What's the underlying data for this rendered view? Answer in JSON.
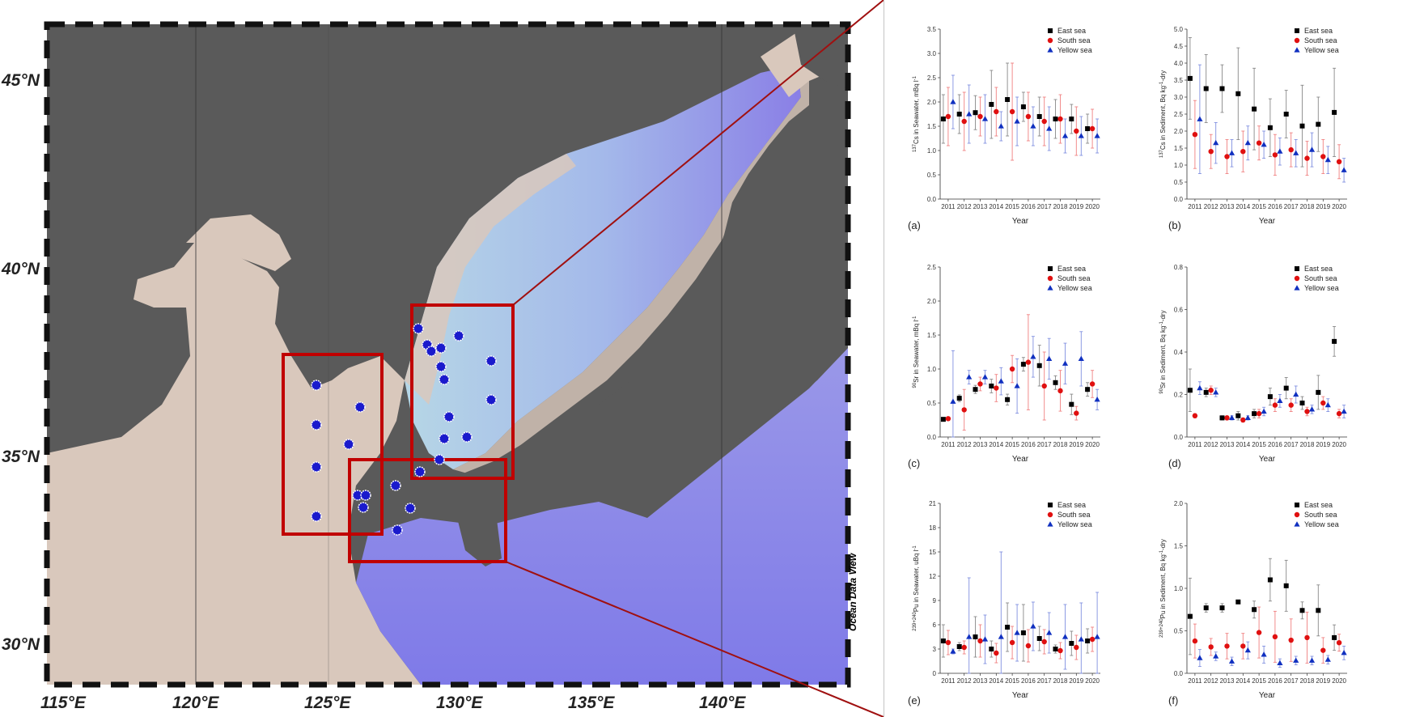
{
  "map": {
    "lat_labels": [
      "45°N",
      "40°N",
      "35°N",
      "30°N"
    ],
    "lon_labels": [
      "115°E",
      "120°E",
      "125°E",
      "130°E",
      "135°E",
      "140°E"
    ],
    "credit": "Ocean Data View",
    "colors": {
      "land": "#5a5a5a",
      "shelf": "#d9c8bc",
      "deep": "#8b86e8",
      "mid": "#a3b9e6",
      "box": "#c00000",
      "station": "#1a1acc"
    }
  },
  "chart_data": [
    {
      "type": "scatter",
      "panel": "(a)",
      "xlabel": "Year",
      "ylabel_html": "<tspan font-size='6' dy='-3'>137</tspan><tspan dy='3'>Cs in Seawater, mBq l</tspan><tspan font-size='6' dy='-3'>-1</tspan>",
      "ylim": [
        0,
        3.5
      ],
      "yticks": [
        "0.0",
        "0.5",
        "1.0",
        "1.5",
        "2.0",
        "2.5",
        "3.0",
        "3.5"
      ],
      "categories": [
        "2011",
        "2012",
        "2013",
        "2014",
        "2015",
        "2016",
        "2017",
        "2018",
        "2019",
        "2020"
      ],
      "series": [
        {
          "name": "East sea",
          "color": "#000000",
          "marker": "square",
          "values": [
            1.65,
            1.75,
            1.78,
            1.95,
            2.05,
            1.9,
            1.7,
            1.65,
            1.65,
            1.45
          ],
          "err": [
            0.5,
            0.4,
            0.35,
            0.7,
            0.75,
            0.3,
            0.4,
            0.4,
            0.3,
            0.3
          ]
        },
        {
          "name": "South sea",
          "color": "#e01010",
          "marker": "circle",
          "values": [
            1.7,
            1.6,
            1.7,
            1.8,
            1.8,
            1.7,
            1.6,
            1.65,
            1.4,
            1.45
          ],
          "err": [
            0.6,
            0.6,
            0.4,
            0.5,
            1.0,
            0.5,
            0.5,
            0.5,
            0.5,
            0.4
          ]
        },
        {
          "name": "Yellow sea",
          "color": "#1030c0",
          "marker": "triangle",
          "values": [
            2.0,
            1.75,
            1.65,
            1.5,
            1.6,
            1.5,
            1.45,
            1.3,
            1.3,
            1.3
          ],
          "err": [
            0.55,
            0.6,
            0.5,
            0.3,
            0.5,
            0.4,
            0.45,
            0.35,
            0.4,
            0.35
          ]
        }
      ]
    },
    {
      "type": "scatter",
      "panel": "(b)",
      "xlabel": "Year",
      "ylabel_html": "<tspan font-size='6' dy='-3'>137</tspan><tspan dy='3'>Cs in Sediment, Bq kg</tspan><tspan font-size='6' dy='-3'>-1</tspan><tspan dy='3'>-dry</tspan>",
      "ylim": [
        0,
        5.0
      ],
      "yticks": [
        "0.0",
        "0.5",
        "1.0",
        "1.5",
        "2.0",
        "2.5",
        "3.0",
        "3.5",
        "4.0",
        "4.5",
        "5.0"
      ],
      "categories": [
        "2011",
        "2012",
        "2013",
        "2014",
        "2015",
        "2016",
        "2017",
        "2018",
        "2019",
        "2020"
      ],
      "series": [
        {
          "name": "East sea",
          "color": "#000000",
          "marker": "square",
          "values": [
            3.55,
            3.25,
            3.25,
            3.1,
            2.65,
            2.1,
            2.5,
            2.15,
            2.2,
            2.55
          ],
          "err": [
            1.2,
            1.0,
            0.7,
            1.35,
            1.2,
            0.85,
            0.7,
            1.2,
            0.8,
            1.3
          ]
        },
        {
          "name": "South sea",
          "color": "#e01010",
          "marker": "circle",
          "values": [
            1.9,
            1.4,
            1.25,
            1.4,
            1.65,
            1.3,
            1.45,
            1.2,
            1.25,
            1.1
          ],
          "err": [
            1.0,
            0.5,
            0.5,
            0.6,
            0.5,
            0.6,
            0.5,
            0.5,
            0.5,
            0.5
          ]
        },
        {
          "name": "Yellow sea",
          "color": "#1030c0",
          "marker": "triangle",
          "values": [
            2.35,
            1.65,
            1.35,
            1.65,
            1.6,
            1.4,
            1.35,
            1.45,
            1.15,
            0.85
          ],
          "err": [
            1.6,
            0.6,
            0.4,
            0.5,
            0.4,
            0.4,
            0.4,
            0.5,
            0.4,
            0.35
          ]
        }
      ]
    },
    {
      "type": "scatter",
      "panel": "(c)",
      "xlabel": "Year",
      "ylabel_html": "<tspan font-size='6' dy='-3'>90</tspan><tspan dy='3'>Sr in Seawater, mBq l</tspan><tspan font-size='6' dy='-3'>-1</tspan>",
      "ylim": [
        0,
        2.5
      ],
      "yticks": [
        "0.0",
        "0.5",
        "1.0",
        "1.5",
        "2.0",
        "2.5"
      ],
      "categories": [
        "2011",
        "2012",
        "2013",
        "2014",
        "2015",
        "2016",
        "2017",
        "2018",
        "2019",
        "2020"
      ],
      "series": [
        {
          "name": "East sea",
          "color": "#000000",
          "marker": "square",
          "values": [
            0.26,
            0.57,
            0.7,
            0.75,
            0.55,
            1.07,
            1.05,
            0.8,
            0.48,
            0.7
          ],
          "err": [
            0.02,
            0.05,
            0.06,
            0.1,
            0.08,
            0.1,
            0.3,
            0.1,
            0.15,
            0.1
          ]
        },
        {
          "name": "South sea",
          "color": "#e01010",
          "marker": "circle",
          "values": [
            0.27,
            0.4,
            0.78,
            0.72,
            1.0,
            1.1,
            0.75,
            0.68,
            0.35,
            0.78
          ],
          "err": [
            0.02,
            0.3,
            0.1,
            0.2,
            0.2,
            0.7,
            0.5,
            0.3,
            0.1,
            0.2
          ]
        },
        {
          "name": "Yellow sea",
          "color": "#1030c0",
          "marker": "triangle",
          "values": [
            0.52,
            0.88,
            0.88,
            0.82,
            0.75,
            1.18,
            1.15,
            1.08,
            1.15,
            0.55
          ],
          "err": [
            0.75,
            0.1,
            0.1,
            0.2,
            0.4,
            0.3,
            0.3,
            0.3,
            0.4,
            0.15
          ]
        }
      ]
    },
    {
      "type": "scatter",
      "panel": "(d)",
      "xlabel": "Year",
      "ylabel_html": "<tspan font-size='6' dy='-3'>90</tspan><tspan dy='3'>Sr in Sediment, Bq kg</tspan><tspan font-size='6' dy='-3'>-1</tspan><tspan dy='3'>-dry</tspan>",
      "ylim": [
        0,
        0.8
      ],
      "yticks": [
        "0.0",
        "0.2",
        "0.4",
        "0.6",
        "0.8"
      ],
      "categories": [
        "2011",
        "2012",
        "2013",
        "2014",
        "2015",
        "2016",
        "2017",
        "2018",
        "2019",
        "2020"
      ],
      "series": [
        {
          "name": "East sea",
          "color": "#000000",
          "marker": "square",
          "values": [
            0.22,
            0.21,
            0.09,
            0.1,
            0.11,
            0.19,
            0.23,
            0.16,
            0.21,
            0.45
          ],
          "err": [
            0.1,
            0.02,
            0.01,
            0.02,
            0.02,
            0.04,
            0.05,
            0.03,
            0.08,
            0.07
          ]
        },
        {
          "name": "South sea",
          "color": "#e01010",
          "marker": "circle",
          "values": [
            0.1,
            0.22,
            0.09,
            0.08,
            0.11,
            0.15,
            0.15,
            0.12,
            0.16,
            0.11
          ],
          "err": [
            0.01,
            0.02,
            0.01,
            0.01,
            0.02,
            0.03,
            0.03,
            0.02,
            0.03,
            0.02
          ]
        },
        {
          "name": "Yellow sea",
          "color": "#1030c0",
          "marker": "triangle",
          "values": [
            0.23,
            0.21,
            0.09,
            0.09,
            0.12,
            0.17,
            0.2,
            0.13,
            0.15,
            0.12
          ],
          "err": [
            0.03,
            0.02,
            0.01,
            0.01,
            0.02,
            0.03,
            0.04,
            0.02,
            0.03,
            0.03
          ]
        }
      ]
    },
    {
      "type": "scatter",
      "panel": "(e)",
      "xlabel": "Year",
      "ylabel_html": "<tspan font-size='6' dy='-3'>239+240</tspan><tspan dy='3'>Pu in Seawater, uBq l</tspan><tspan font-size='6' dy='-3'>-1</tspan>",
      "ylim": [
        0,
        21
      ],
      "yticks": [
        "0",
        "3",
        "6",
        "9",
        "12",
        "15",
        "18",
        "21"
      ],
      "categories": [
        "2011",
        "2012",
        "2013",
        "2014",
        "2015",
        "2016",
        "2017",
        "2018",
        "2019",
        "2020"
      ],
      "series": [
        {
          "name": "East sea",
          "color": "#000000",
          "marker": "square",
          "values": [
            4.0,
            3.3,
            4.5,
            3.0,
            5.7,
            5.0,
            4.3,
            3.0,
            3.7,
            4.0
          ],
          "err": [
            2.0,
            0.5,
            2.5,
            1.0,
            3.0,
            3.5,
            1.5,
            0.5,
            1.5,
            1.5
          ]
        },
        {
          "name": "South sea",
          "color": "#e01010",
          "marker": "circle",
          "values": [
            3.8,
            3.2,
            4.0,
            2.5,
            3.8,
            3.4,
            3.9,
            2.8,
            3.2,
            4.2
          ],
          "err": [
            1.5,
            0.8,
            2.0,
            1.2,
            2.0,
            2.0,
            1.5,
            1.0,
            1.5,
            1.5
          ]
        },
        {
          "name": "Yellow sea",
          "color": "#1030c0",
          "marker": "triangle",
          "values": [
            2.7,
            4.5,
            4.2,
            4.5,
            5.0,
            5.8,
            5.0,
            4.5,
            4.2,
            4.5
          ],
          "err": [
            0.3,
            7.3,
            3.0,
            10.5,
            3.5,
            3.0,
            2.5,
            4.0,
            4.5,
            5.5
          ]
        }
      ]
    },
    {
      "type": "scatter",
      "panel": "(f)",
      "xlabel": "Year",
      "ylabel_html": "<tspan font-size='6' dy='-3'>239+240</tspan><tspan dy='3'>Pu in Sediment, Bq kg</tspan><tspan font-size='6' dy='-3'>-1</tspan><tspan dy='3'>-dry</tspan>",
      "ylim": [
        0,
        2.0
      ],
      "yticks": [
        "0.0",
        "0.5",
        "1.0",
        "1.5",
        "2.0"
      ],
      "categories": [
        "2011",
        "2012",
        "2013",
        "2014",
        "2015",
        "2016",
        "2017",
        "2018",
        "2019",
        "2020"
      ],
      "series": [
        {
          "name": "East sea",
          "color": "#000000",
          "marker": "square",
          "values": [
            0.67,
            0.77,
            0.77,
            0.84,
            0.75,
            1.1,
            1.03,
            0.74,
            0.74,
            0.42
          ],
          "err": [
            0.45,
            0.05,
            0.05,
            0.02,
            0.1,
            0.25,
            0.3,
            0.1,
            0.3,
            0.15
          ]
        },
        {
          "name": "South sea",
          "color": "#e01010",
          "marker": "circle",
          "values": [
            0.38,
            0.31,
            0.32,
            0.32,
            0.48,
            0.43,
            0.39,
            0.42,
            0.27,
            0.36
          ],
          "err": [
            0.2,
            0.1,
            0.15,
            0.15,
            0.3,
            0.3,
            0.25,
            0.3,
            0.15,
            0.1
          ]
        },
        {
          "name": "Yellow sea",
          "color": "#1030c0",
          "marker": "triangle",
          "values": [
            0.18,
            0.2,
            0.14,
            0.27,
            0.22,
            0.12,
            0.15,
            0.15,
            0.16,
            0.24
          ],
          "err": [
            0.1,
            0.05,
            0.05,
            0.1,
            0.1,
            0.05,
            0.05,
            0.05,
            0.05,
            0.08
          ]
        }
      ]
    }
  ]
}
